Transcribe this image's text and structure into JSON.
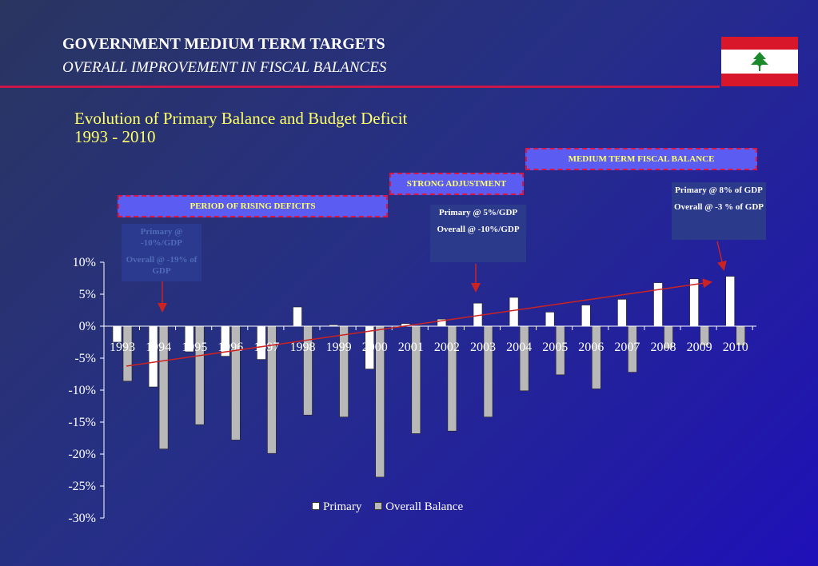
{
  "header": {
    "title": "GOVERNMENT MEDIUM TERM TARGETS",
    "subtitle": "OVERALL IMPROVEMENT IN FISCAL BALANCES"
  },
  "chart_title_line1": "Evolution of Primary Balance and Budget Deficit",
  "chart_title_line2": "1993 - 2010",
  "periods": {
    "rising": "PERIOD OF RISING DEFICITS",
    "strong": "STRONG ADJUSTMENT",
    "medium": "MEDIUM TERM FISCAL BALANCE"
  },
  "notes": {
    "n1_primary": "Primary @ -10%/GDP",
    "n1_overall": "Overall @ -19% of GDP",
    "n2_primary": "Primary @ 5%/GDP",
    "n2_overall": "Overall @ -10%/GDP",
    "n3_primary": "Primary @ 8% of GDP",
    "n3_overall": "Overall @ -3 % of GDP"
  },
  "colors": {
    "primary_bar": "#ffffff",
    "overall_bar": "#b8b8b8",
    "trend_arrow": "#cc2222",
    "accent_rule": "#c8184a"
  },
  "chart_data": {
    "type": "bar",
    "categories": [
      "1993",
      "1994",
      "1995",
      "1996",
      "1997",
      "1998",
      "1999",
      "2000",
      "2001",
      "2002",
      "2003",
      "2004",
      "2005",
      "2006",
      "2007",
      "2008",
      "2009",
      "2010"
    ],
    "series": [
      {
        "name": "Primary",
        "values": [
          -2.5,
          -9.5,
          -4.0,
          -4.7,
          -5.2,
          3.0,
          0.2,
          -6.7,
          0.4,
          1.1,
          3.6,
          4.5,
          2.2,
          3.3,
          4.2,
          6.8,
          7.4,
          7.8
        ]
      },
      {
        "name": "Overall Balance",
        "values": [
          -8.6,
          -19.2,
          -15.4,
          -17.8,
          -19.9,
          -13.9,
          -14.2,
          -23.6,
          -16.8,
          -16.4,
          -14.2,
          -10.1,
          -7.6,
          -9.8,
          -7.2,
          -3.5,
          -3.0,
          -3.0
        ]
      }
    ],
    "ylim": [
      -30,
      10
    ],
    "yticks": [
      "10%",
      "5%",
      "0%",
      "-5%",
      "-10%",
      "-15%",
      "-20%",
      "-25%",
      "-30%"
    ],
    "ytick_values": [
      10,
      5,
      0,
      -5,
      -10,
      -15,
      -20,
      -25,
      -30
    ],
    "legend": [
      "Primary",
      "Overall Balance"
    ],
    "legend_position": "bottom-right",
    "grid": false
  }
}
